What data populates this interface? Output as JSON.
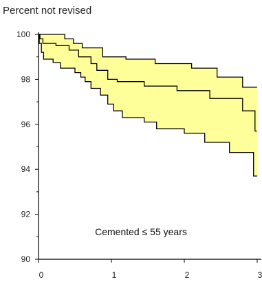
{
  "chart_data": {
    "type": "line",
    "title": "",
    "xlabel": "",
    "ylabel": "Percent not revised",
    "annotation": "Cemented ≤ 55 years",
    "xlim": [
      0,
      3
    ],
    "ylim": [
      90,
      100
    ],
    "xticks": [
      0,
      1,
      2,
      3
    ],
    "xtick_labels": [
      "0",
      "1",
      "2",
      "3"
    ],
    "yticks": [
      90,
      92,
      94,
      96,
      98,
      100
    ],
    "ytick_labels": [
      "90",
      "92",
      "94",
      "96",
      "98",
      "100"
    ],
    "grid": false,
    "fill_color": "#ffff99",
    "line_color": "#000000",
    "series": [
      {
        "role": "upper_ci",
        "x": [
          0,
          0.36,
          0.36,
          0.48,
          0.48,
          0.6,
          0.6,
          0.88,
          0.88,
          1.2,
          1.2,
          1.6,
          1.6,
          2.1,
          2.1,
          2.45,
          2.45,
          2.8,
          2.8,
          3.0
        ],
        "y": [
          100,
          100,
          99.8,
          99.8,
          99.6,
          99.6,
          99.4,
          99.4,
          99.0,
          99.0,
          98.9,
          98.9,
          98.7,
          98.7,
          98.5,
          98.5,
          98.1,
          98.1,
          97.65,
          97.65
        ]
      },
      {
        "role": "estimate",
        "x": [
          0,
          0.02,
          0.02,
          0.06,
          0.06,
          0.24,
          0.24,
          0.42,
          0.42,
          0.55,
          0.55,
          0.72,
          0.72,
          0.8,
          0.8,
          0.95,
          0.95,
          1.08,
          1.08,
          1.45,
          1.45,
          1.9,
          1.9,
          2.35,
          2.35,
          2.8,
          2.8,
          2.97,
          2.97,
          3.0
        ],
        "y": [
          100,
          100,
          99.8,
          99.8,
          99.6,
          99.6,
          99.5,
          99.5,
          99.3,
          99.3,
          99.0,
          99.0,
          98.7,
          98.7,
          98.4,
          98.4,
          98.0,
          98.0,
          97.9,
          97.9,
          97.7,
          97.7,
          97.5,
          97.5,
          97.15,
          97.15,
          96.6,
          96.6,
          95.7,
          95.7
        ]
      },
      {
        "role": "lower_ci",
        "x": [
          0,
          0.01,
          0.01,
          0.04,
          0.04,
          0.07,
          0.07,
          0.2,
          0.2,
          0.3,
          0.3,
          0.5,
          0.5,
          0.58,
          0.58,
          0.64,
          0.64,
          0.72,
          0.72,
          0.85,
          0.85,
          0.95,
          0.95,
          1.03,
          1.03,
          1.15,
          1.15,
          1.45,
          1.45,
          1.62,
          1.62,
          2.0,
          2.0,
          2.28,
          2.28,
          2.62,
          2.62,
          2.95,
          2.95,
          3.0
        ],
        "y": [
          100,
          100,
          99.6,
          99.6,
          99.2,
          99.2,
          98.9,
          98.9,
          98.75,
          98.75,
          98.5,
          98.5,
          98.3,
          98.3,
          98.1,
          98.1,
          97.9,
          97.9,
          97.6,
          97.6,
          97.3,
          97.3,
          96.9,
          96.9,
          96.6,
          96.6,
          96.3,
          96.3,
          96.1,
          96.1,
          95.8,
          95.8,
          95.6,
          95.6,
          95.2,
          95.2,
          94.75,
          94.75,
          93.7,
          93.7
        ]
      }
    ]
  }
}
